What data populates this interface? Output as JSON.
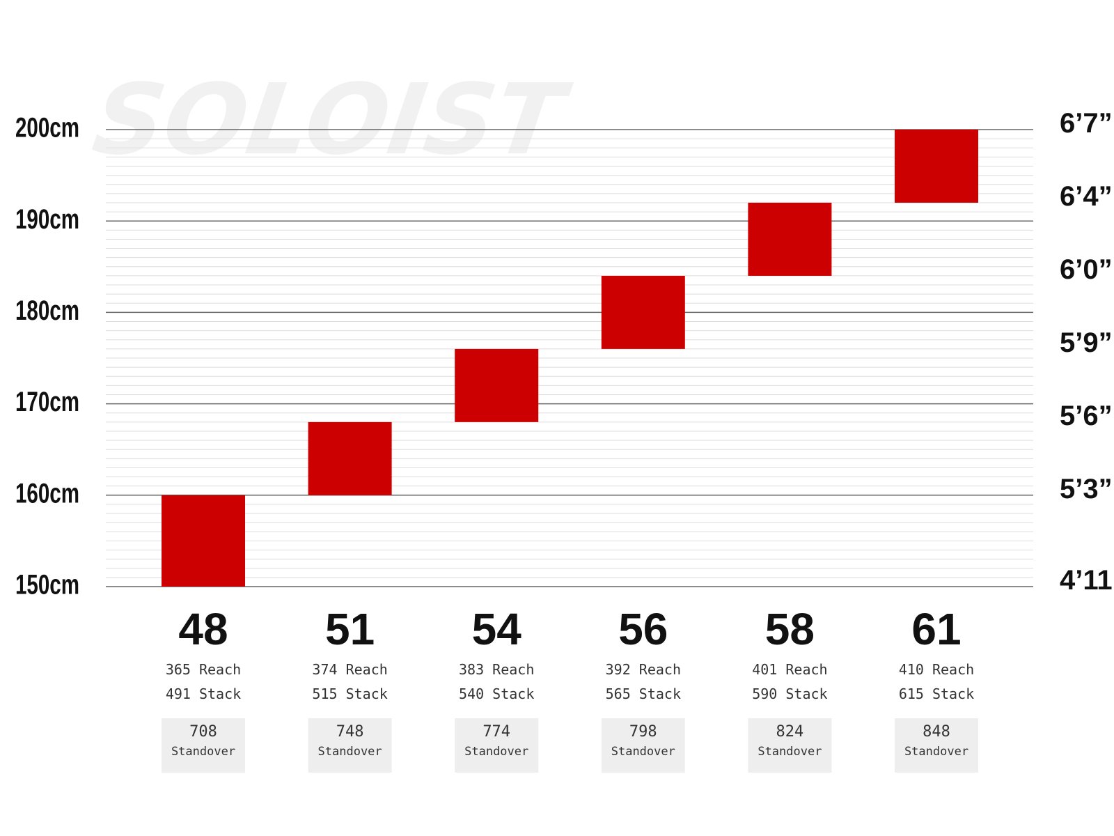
{
  "watermark": "SOLOIST",
  "colors": {
    "bar": "#cc0000",
    "major_grid": "#666666",
    "minor_grid": "#dddddd",
    "standover_box": "#eeeeee"
  },
  "chart_data": {
    "type": "bar",
    "orientation": "floating-range",
    "title": "",
    "ylabel": "",
    "xlabel": "",
    "ylim": [
      150,
      200
    ],
    "grid": true,
    "y_ticks_left": [
      "200cm",
      "190cm",
      "180cm",
      "170cm",
      "160cm",
      "150cm"
    ],
    "y_ticks_left_values": [
      200,
      190,
      180,
      170,
      160,
      150
    ],
    "y_ticks_right": [
      "6’7”",
      "6’4”",
      "6’0”",
      "5’9”",
      "5’6”",
      "5’3”",
      "4’11”"
    ],
    "y_ticks_right_values": [
      200.5,
      192.5,
      184.5,
      176.5,
      168.5,
      160.5,
      150.5
    ],
    "categories": [
      "48",
      "51",
      "54",
      "56",
      "58",
      "61"
    ],
    "ranges": [
      {
        "size": "48",
        "low": 150,
        "high": 160,
        "reach": "365 Reach",
        "stack": "491 Stack",
        "standover": "708",
        "standover_label": "Standover"
      },
      {
        "size": "51",
        "low": 160,
        "high": 168,
        "reach": "374 Reach",
        "stack": "515 Stack",
        "standover": "748",
        "standover_label": "Standover"
      },
      {
        "size": "54",
        "low": 168,
        "high": 176,
        "reach": "383 Reach",
        "stack": "540 Stack",
        "standover": "774",
        "standover_label": "Standover"
      },
      {
        "size": "56",
        "low": 176,
        "high": 184,
        "reach": "392 Reach",
        "stack": "565 Stack",
        "standover": "798",
        "standover_label": "Standover"
      },
      {
        "size": "58",
        "low": 184,
        "high": 192,
        "reach": "401 Reach",
        "stack": "590 Stack",
        "standover": "824",
        "standover_label": "Standover"
      },
      {
        "size": "61",
        "low": 192,
        "high": 200,
        "reach": "410 Reach",
        "stack": "615 Stack",
        "standover": "848",
        "standover_label": "Standover"
      }
    ]
  }
}
